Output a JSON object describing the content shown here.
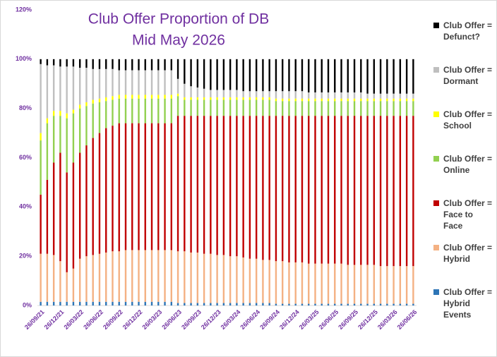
{
  "chart_data": {
    "type": "bar",
    "stacked": true,
    "title": "Club Offer Proportion of DB",
    "subtitle": "Mid May 2026",
    "categories": [
      "26/09/21",
      null,
      null,
      "26/12/21",
      null,
      null,
      "26/03/22",
      null,
      null,
      "26/06/22",
      null,
      null,
      "26/09/22",
      null,
      null,
      "26/12/22",
      null,
      null,
      "26/03/23",
      null,
      null,
      "26/06/23",
      null,
      null,
      "26/09/23",
      null,
      null,
      "26/12/23",
      null,
      null,
      "26/03/24",
      null,
      null,
      "26/06/24",
      null,
      null,
      "26/09/24",
      null,
      null,
      "26/12/24",
      null,
      null,
      "26/03/25",
      null,
      null,
      "26/06/25",
      null,
      null,
      "26/09/25",
      null,
      null,
      "26/12/25",
      null,
      null,
      "26/03/26",
      null,
      null,
      "26/06/26"
    ],
    "ylim": [
      0,
      120
    ],
    "yticks": [
      {
        "value": 0,
        "label": "0%"
      },
      {
        "value": 20,
        "label": "20%"
      },
      {
        "value": 40,
        "label": "40%"
      },
      {
        "value": 60,
        "label": "60%"
      },
      {
        "value": 80,
        "label": "80%"
      },
      {
        "value": 100,
        "label": "100%"
      },
      {
        "value": 120,
        "label": "120%"
      }
    ],
    "legend": "right",
    "series": [
      {
        "name": "Club Offer = Hybrid Events",
        "color": "#2e75b6",
        "values": [
          1.5,
          1.5,
          1.5,
          1.5,
          1.5,
          1.5,
          1.5,
          1.5,
          1.5,
          1.5,
          1.5,
          1.5,
          1.5,
          1.5,
          1.5,
          1.5,
          1.5,
          1.5,
          1.5,
          1.5,
          1.5,
          1,
          1,
          1,
          1,
          1,
          1,
          1,
          1,
          1,
          1,
          1,
          1,
          1,
          1,
          1,
          0.7,
          0.7,
          0.7,
          0.7,
          0.7,
          0.7,
          0.7,
          0.7,
          0.7,
          0.7,
          0.7,
          0.7,
          0.7,
          0.7,
          0.7,
          0.7,
          0.7,
          0.7,
          0.7,
          0.7,
          0.7,
          0.7
        ]
      },
      {
        "name": "Club Offer = Hybrid",
        "color": "#f4b183",
        "values": [
          19.5,
          19.5,
          19,
          16.5,
          12,
          13.5,
          17.5,
          18.5,
          19,
          19.5,
          20,
          20.5,
          20.5,
          21,
          21,
          21,
          21,
          21,
          21,
          21,
          21,
          21,
          21,
          20.5,
          20.5,
          20,
          20,
          19.5,
          19.5,
          19,
          19,
          18.5,
          18,
          18,
          17.5,
          17.5,
          17.3,
          17.3,
          16.8,
          16.8,
          16.8,
          16.3,
          16.3,
          16.3,
          16.3,
          16.3,
          16.3,
          15.8,
          15.8,
          15.8,
          15.8,
          15.8,
          15.3,
          15.3,
          15.3,
          15.3,
          15.3,
          15.3
        ]
      },
      {
        "name": "Club Offer = Face to Face",
        "color": "#c00000",
        "values": [
          24,
          30,
          37.5,
          44,
          40.5,
          43,
          43,
          45,
          47.5,
          49,
          50.5,
          51,
          52,
          51.5,
          51.5,
          51.5,
          51.5,
          51.5,
          51.5,
          51.5,
          51.5,
          55,
          55,
          55.5,
          55.5,
          56,
          56,
          56.5,
          56.5,
          57,
          57,
          57.5,
          58,
          58,
          58.5,
          58.5,
          59,
          59,
          59.5,
          59.5,
          59.5,
          60,
          60,
          60,
          60,
          60,
          60,
          60.5,
          60.5,
          60.5,
          60.5,
          60.5,
          61,
          61,
          61,
          61,
          61,
          61
        ]
      },
      {
        "name": "Club Offer = Online",
        "color": "#92d050",
        "values": [
          22,
          23,
          19,
          15,
          22,
          20,
          18,
          16,
          14,
          12.5,
          11,
          10.5,
          10,
          10,
          10,
          10,
          10,
          10,
          10,
          10,
          10,
          8,
          6.5,
          6.5,
          6.5,
          6.5,
          6.5,
          6.5,
          6.5,
          6.5,
          6.5,
          6.5,
          6.5,
          6.5,
          6.5,
          6.5,
          6,
          6,
          6,
          6,
          6,
          6,
          6,
          6,
          6,
          6,
          6,
          6,
          6,
          6,
          6,
          6,
          6,
          6,
          6,
          6,
          6,
          6
        ]
      },
      {
        "name": "Club Offer = School",
        "color": "#ffff00",
        "values": [
          3,
          2,
          2,
          2,
          2,
          1.5,
          1.5,
          1.5,
          1.5,
          1.5,
          1.5,
          1.5,
          1.5,
          1.5,
          1.5,
          1.5,
          1.5,
          1.5,
          1.5,
          1.5,
          1.5,
          1,
          1,
          1,
          1,
          1,
          1,
          1,
          1,
          1,
          1,
          1,
          1,
          1,
          1,
          1,
          1,
          1,
          1,
          1,
          1,
          1,
          1,
          1,
          1,
          1,
          1,
          1,
          1,
          1,
          1,
          1,
          1,
          1,
          1,
          1,
          1,
          1
        ]
      },
      {
        "name": "Club Offer = Dormant",
        "color": "#bfbfbf",
        "values": [
          28,
          21.5,
          18.5,
          18,
          19,
          17.5,
          15,
          14,
          12.5,
          12,
          11.5,
          11,
          10,
          10,
          10,
          10,
          10,
          10,
          10,
          10,
          10,
          6,
          5.5,
          4.5,
          4,
          3.5,
          3,
          3,
          3,
          3,
          3,
          2.5,
          2.5,
          2.5,
          2.5,
          2.5,
          3,
          3,
          3,
          3,
          3,
          2.5,
          2.5,
          2.5,
          2.5,
          2.5,
          2.5,
          2.5,
          2.5,
          2.5,
          2,
          2,
          2,
          2,
          2,
          2,
          2,
          2
        ]
      },
      {
        "name": "Club Offer = Defunct?",
        "color": "#000000",
        "values": [
          2,
          2.5,
          2.5,
          3,
          3,
          3,
          3.5,
          3.5,
          4,
          4,
          4,
          4,
          4.5,
          4.5,
          4.5,
          4.5,
          4.5,
          4.5,
          4.5,
          4.5,
          4.5,
          8,
          10,
          11,
          11.5,
          12,
          12.5,
          12.5,
          12.5,
          12.5,
          12.5,
          13,
          13,
          13,
          13,
          13,
          13,
          13,
          13,
          13,
          13,
          13.5,
          13.5,
          13.5,
          13.5,
          13.5,
          13.5,
          13.5,
          13.5,
          13.5,
          14,
          14,
          14,
          14,
          14,
          14,
          14,
          14
        ]
      }
    ]
  }
}
